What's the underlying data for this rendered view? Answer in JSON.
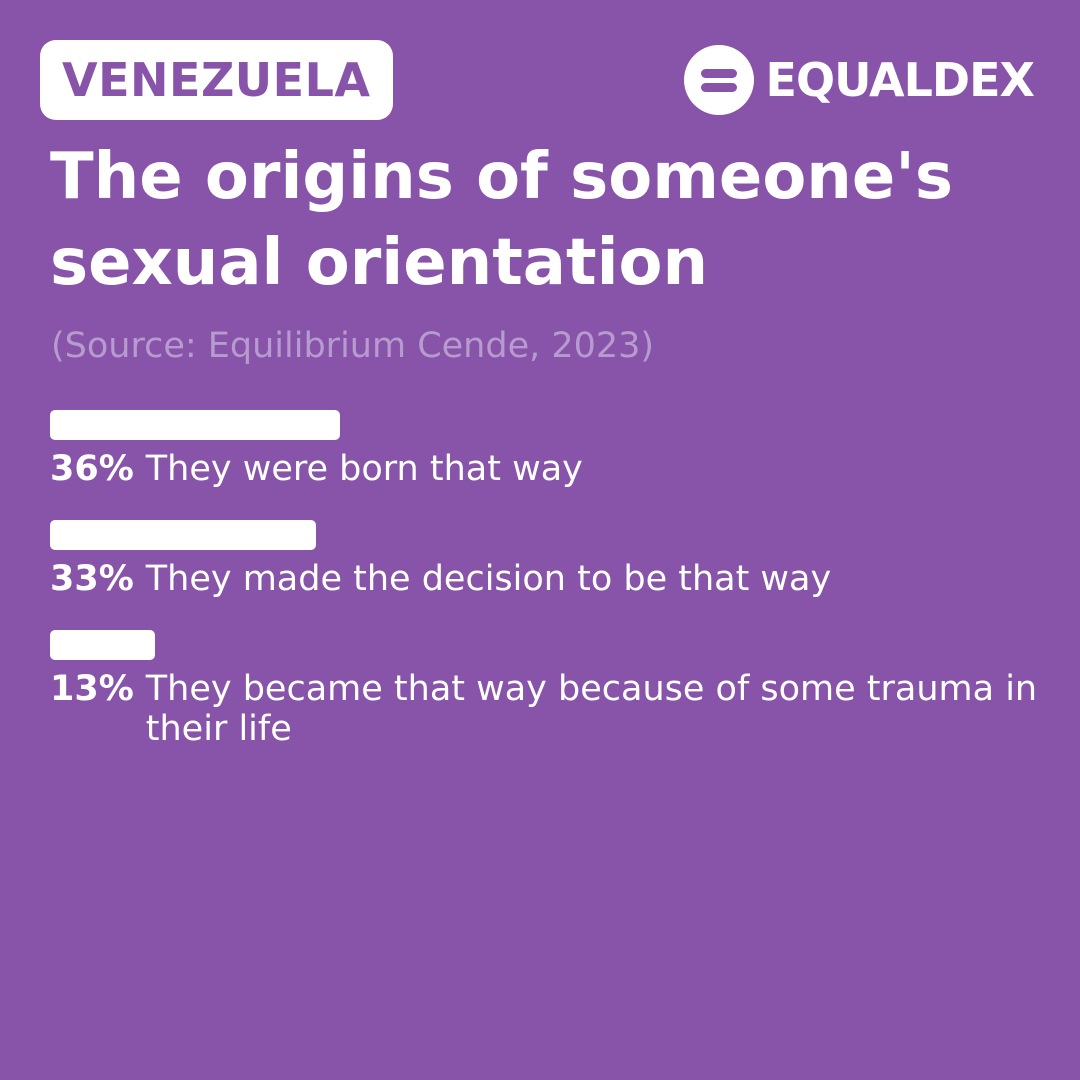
{
  "country": "VENEZUELA",
  "logo": {
    "text": "EQUALDEX",
    "icon": "equaldex-logo-icon"
  },
  "title": "The origins of someone's sexual orientation",
  "source": "(Source: Equilibrium Cende, 2023)",
  "colors": {
    "background": "#8754a9",
    "bar": "#ffffff",
    "source_text": "#b79bcf"
  },
  "chart_data": {
    "type": "bar",
    "orientation": "horizontal",
    "categories": [
      "They were born that way",
      "They made the decision to be that way",
      "They became that way because of some trauma in their life"
    ],
    "values": [
      36,
      33,
      13
    ],
    "labels": [
      "36%",
      "33%",
      "13%"
    ],
    "unit": "%",
    "xlim": [
      0,
      100
    ],
    "grid": false,
    "legend": "none"
  }
}
